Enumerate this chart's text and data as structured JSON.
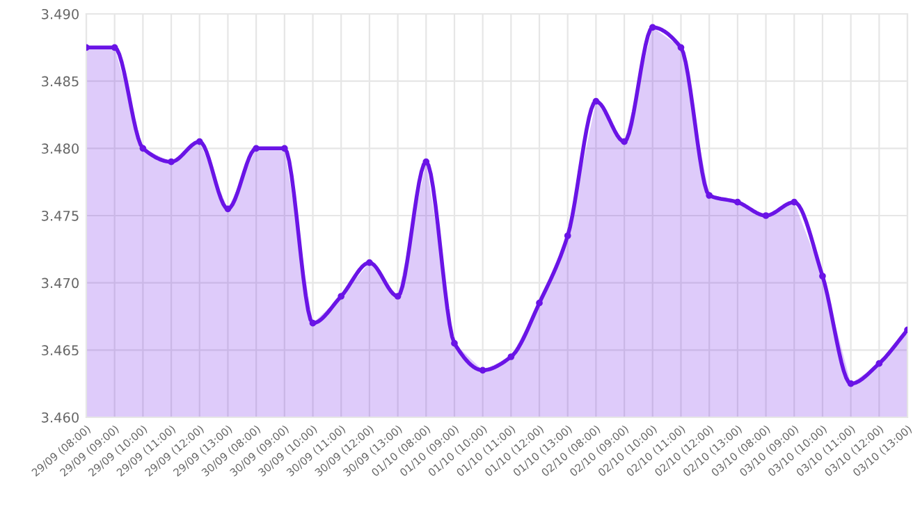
{
  "chart_data": {
    "type": "area",
    "categories": [
      "29/09 (08:00)",
      "29/09 (09:00)",
      "29/09 (10:00)",
      "29/09 (11:00)",
      "29/09 (12:00)",
      "29/09 (13:00)",
      "30/09 (08:00)",
      "30/09 (09:00)",
      "30/09 (10:00)",
      "30/09 (11:00)",
      "30/09 (12:00)",
      "30/09 (13:00)",
      "01/10 (08:00)",
      "01/10 (09:00)",
      "01/10 (10:00)",
      "01/10 (11:00)",
      "01/10 (12:00)",
      "01/10 (13:00)",
      "02/10 (08:00)",
      "02/10 (09:00)",
      "02/10 (10:00)",
      "02/10 (11:00)",
      "02/10 (12:00)",
      "02/10 (13:00)",
      "03/10 (08:00)",
      "03/10 (09:00)",
      "03/10 (10:00)",
      "03/10 (11:00)",
      "03/10 (12:00)",
      "03/10 (13:00)"
    ],
    "series": [
      {
        "color": "#6a14e6",
        "values": [
          3.4875,
          3.4875,
          3.48,
          3.479,
          3.4805,
          3.4755,
          3.48,
          3.48,
          3.467,
          3.469,
          3.4715,
          3.469,
          3.479,
          3.4655,
          3.4635,
          3.4645,
          3.4685,
          3.4735,
          3.4835,
          3.4805,
          3.489,
          3.4875,
          3.4765,
          3.476,
          3.475,
          3.476,
          3.4705,
          3.4625,
          3.464,
          3.4665
        ]
      }
    ],
    "ylim": [
      3.46,
      3.49
    ],
    "yticks": [
      {
        "value": 3.46,
        "label": "3.460"
      },
      {
        "value": 3.465,
        "label": "3.465"
      },
      {
        "value": 3.47,
        "label": "3.470"
      },
      {
        "value": 3.475,
        "label": "3.475"
      },
      {
        "value": 3.48,
        "label": "3.480"
      },
      {
        "value": 3.485,
        "label": "3.485"
      },
      {
        "value": 3.49,
        "label": "3.490"
      }
    ],
    "grid": true,
    "marker": "circle",
    "line_style": "solid"
  }
}
